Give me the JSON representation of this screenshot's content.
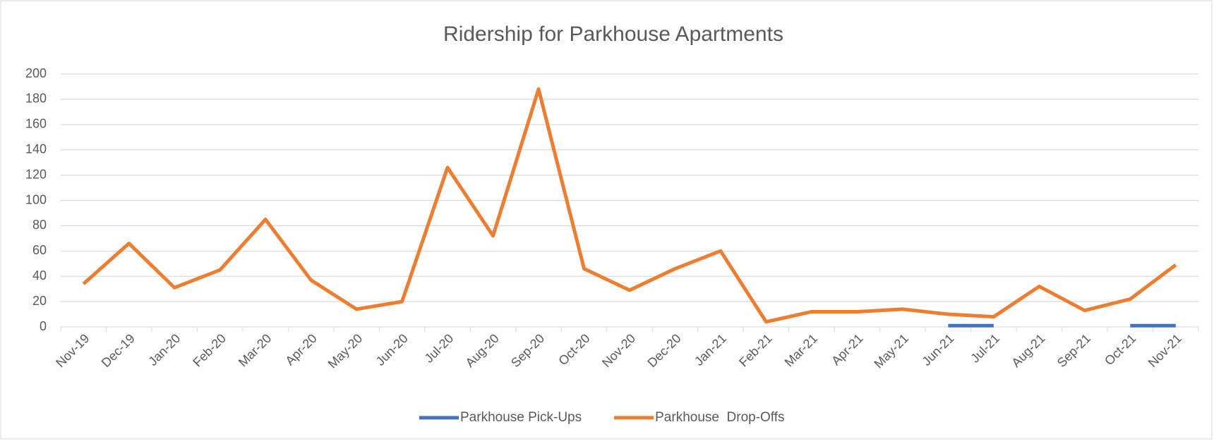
{
  "chart_data": {
    "type": "line",
    "title": "Ridership for Parkhouse Apartments",
    "categories": [
      "Nov-19",
      "Dec-19",
      "Jan-20",
      "Feb-20",
      "Mar-20",
      "Apr-20",
      "May-20",
      "Jun-20",
      "Jul-20",
      "Aug-20",
      "Sep-20",
      "Oct-20",
      "Nov-20",
      "Dec-20",
      "Jan-21",
      "Feb-21",
      "Mar-21",
      "Apr-21",
      "May-21",
      "Jun-21",
      "Jul-21",
      "Aug-21",
      "Sep-21",
      "Oct-21",
      "Nov-21"
    ],
    "series": [
      {
        "name": "Parkhouse Pick-Ups",
        "color": "#4472c4",
        "values": [
          null,
          null,
          null,
          null,
          null,
          null,
          null,
          null,
          null,
          null,
          null,
          null,
          null,
          null,
          null,
          null,
          null,
          null,
          null,
          1,
          1,
          null,
          null,
          1,
          1
        ]
      },
      {
        "name": "Parkhouse  Drop-Offs",
        "color": "#ed7d31",
        "values": [
          34,
          66,
          31,
          45,
          85,
          37,
          14,
          20,
          126,
          72,
          188,
          46,
          29,
          46,
          60,
          4,
          12,
          12,
          14,
          10,
          8,
          32,
          13,
          22,
          49
        ]
      }
    ],
    "ylim": [
      0,
      200
    ],
    "yticks": [
      0,
      20,
      40,
      60,
      80,
      100,
      120,
      140,
      160,
      180,
      200
    ],
    "grid": true,
    "legend": "bottom"
  }
}
